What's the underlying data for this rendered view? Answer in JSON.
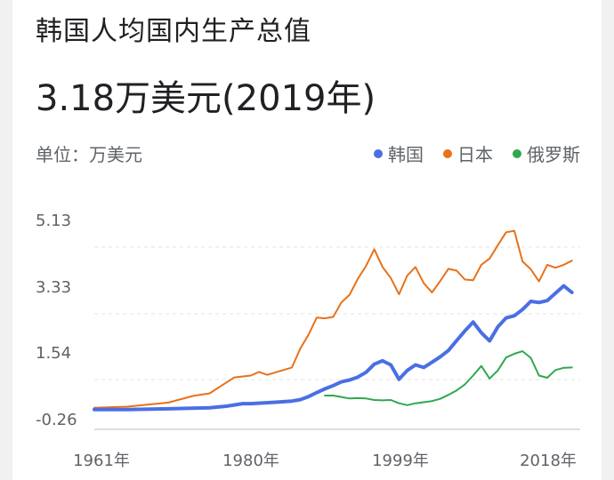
{
  "header": {
    "title": "韩国人均国内生产总值",
    "value": "3.18万美元(2019年)",
    "unit": "单位：万美元"
  },
  "chart_data": {
    "type": "line",
    "title": "韩国人均国内生产总值",
    "ylabel": "万美元",
    "ylim": [
      -0.26,
      5.13
    ],
    "xlim": [
      1961,
      2020
    ],
    "y_ticks": [
      "5.13",
      "3.33",
      "1.54",
      "-0.26"
    ],
    "x_ticks": [
      "1961年",
      "1980年",
      "1999年",
      "2018年"
    ],
    "legend_position": "top-right",
    "series": [
      {
        "name": "韩国",
        "color": "#4a6fe3",
        "x": [
          1961,
          1965,
          1970,
          1975,
          1977,
          1979,
          1980,
          1983,
          1985,
          1986,
          1987,
          1988,
          1989,
          1990,
          1991,
          1992,
          1993,
          1994,
          1995,
          1996,
          1997,
          1998,
          1999,
          2000,
          2001,
          2002,
          2003,
          2004,
          2005,
          2006,
          2007,
          2008,
          2009,
          2010,
          2011,
          2012,
          2013,
          2014,
          2015,
          2016,
          2017,
          2018,
          2019
        ],
        "values": [
          0.01,
          0.01,
          0.03,
          0.06,
          0.1,
          0.17,
          0.17,
          0.21,
          0.24,
          0.28,
          0.36,
          0.47,
          0.57,
          0.66,
          0.76,
          0.81,
          0.89,
          1.02,
          1.24,
          1.33,
          1.22,
          0.83,
          1.07,
          1.22,
          1.15,
          1.29,
          1.44,
          1.61,
          1.88,
          2.14,
          2.38,
          2.09,
          1.87,
          2.25,
          2.49,
          2.55,
          2.72,
          2.94,
          2.91,
          2.96,
          3.16,
          3.36,
          3.18
        ]
      },
      {
        "name": "日本",
        "color": "#e8711a",
        "x": [
          1961,
          1965,
          1970,
          1973,
          1975,
          1978,
          1980,
          1981,
          1982,
          1985,
          1986,
          1987,
          1988,
          1989,
          1990,
          1991,
          1992,
          1993,
          1994,
          1995,
          1996,
          1997,
          1998,
          1999,
          2000,
          2001,
          2002,
          2003,
          2004,
          2005,
          2006,
          2007,
          2008,
          2009,
          2010,
          2011,
          2012,
          2013,
          2014,
          2015,
          2016,
          2017,
          2018,
          2019
        ],
        "values": [
          0.06,
          0.09,
          0.2,
          0.38,
          0.45,
          0.88,
          0.93,
          1.03,
          0.95,
          1.15,
          1.66,
          2.03,
          2.5,
          2.48,
          2.52,
          2.91,
          3.12,
          3.55,
          3.9,
          4.35,
          3.87,
          3.57,
          3.13,
          3.64,
          3.87,
          3.43,
          3.18,
          3.49,
          3.82,
          3.77,
          3.53,
          3.51,
          3.93,
          4.1,
          4.46,
          4.81,
          4.85,
          4.02,
          3.81,
          3.48,
          3.93,
          3.85,
          3.93,
          4.04
        ]
      },
      {
        "name": "俄罗斯",
        "color": "#2fa84f",
        "x": [
          1989,
          1990,
          1991,
          1992,
          1993,
          1994,
          1995,
          1996,
          1997,
          1998,
          1999,
          2000,
          2001,
          2002,
          2003,
          2004,
          2005,
          2006,
          2007,
          2008,
          2009,
          2010,
          2011,
          2012,
          2013,
          2014,
          2015,
          2016,
          2017,
          2018,
          2019
        ],
        "values": [
          0.39,
          0.39,
          0.35,
          0.31,
          0.32,
          0.31,
          0.27,
          0.26,
          0.27,
          0.18,
          0.13,
          0.18,
          0.21,
          0.24,
          0.3,
          0.41,
          0.53,
          0.69,
          0.93,
          1.19,
          0.85,
          1.07,
          1.42,
          1.52,
          1.59,
          1.41,
          0.93,
          0.87,
          1.08,
          1.14,
          1.15
        ]
      }
    ]
  }
}
